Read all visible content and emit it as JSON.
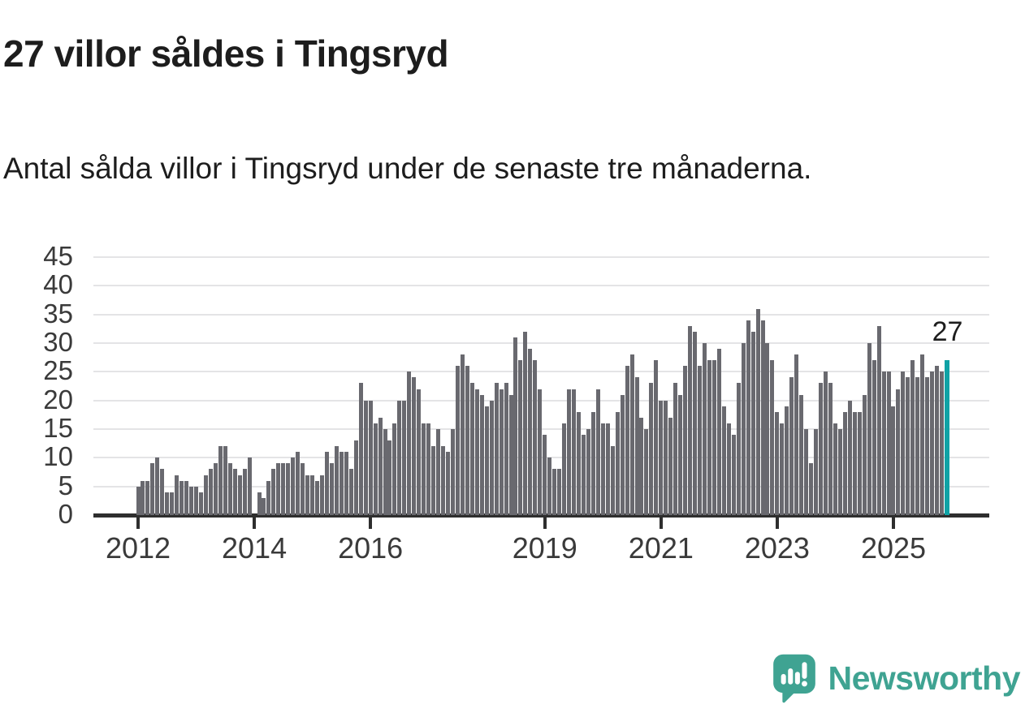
{
  "header": {
    "title": "27 villor såldes i Tingsryd",
    "subtitle": "Antal sålda villor i Tingsryd under de senaste tre månaderna."
  },
  "annotation": {
    "last_value_label": "27"
  },
  "footer": {
    "brand": "Newsworthy",
    "logo_icon": "newsworthy-speech-bubble-chart-icon"
  },
  "colors": {
    "bar": "#69696f",
    "highlight": "#0fa2a5",
    "brand": "#3fa392",
    "grid": "#e4e4e6",
    "axis": "#2e2e2e",
    "text": "#1d1d1d",
    "tick_label": "#3a3a3a"
  },
  "chart_data": {
    "type": "bar",
    "title": "27 villor såldes i Tingsryd",
    "subtitle": "Antal sålda villor i Tingsryd under de senaste tre månaderna.",
    "xlabel": "",
    "ylabel": "",
    "frequency": "monthly",
    "start": "2012-01",
    "end": "2025-12",
    "ylim": [
      0,
      45
    ],
    "y_ticks": [
      0,
      5,
      10,
      15,
      20,
      25,
      30,
      35,
      40,
      45
    ],
    "x_tick_years": [
      2012,
      2014,
      2016,
      2019,
      2021,
      2023,
      2025
    ],
    "x_tick_labels": [
      "2012",
      "2014",
      "2016",
      "2019",
      "2021",
      "2023",
      "2025"
    ],
    "grid": true,
    "legend": false,
    "highlight_last": true,
    "highlight_value": 27,
    "values": [
      5,
      6,
      6,
      9,
      10,
      8,
      4,
      4,
      7,
      6,
      6,
      5,
      5,
      4,
      7,
      8,
      9,
      12,
      12,
      9,
      8,
      7,
      8,
      10,
      0,
      4,
      3,
      6,
      8,
      9,
      9,
      9,
      10,
      11,
      9,
      7,
      7,
      6,
      7,
      11,
      9,
      12,
      11,
      11,
      8,
      13,
      23,
      20,
      20,
      16,
      17,
      15,
      13,
      16,
      20,
      20,
      25,
      24,
      22,
      16,
      16,
      12,
      15,
      12,
      11,
      15,
      26,
      28,
      26,
      23,
      22,
      21,
      19,
      20,
      23,
      22,
      23,
      21,
      31,
      27,
      32,
      29,
      27,
      22,
      14,
      10,
      8,
      8,
      16,
      22,
      22,
      18,
      14,
      15,
      18,
      22,
      16,
      16,
      12,
      18,
      21,
      26,
      28,
      24,
      17,
      15,
      23,
      27,
      20,
      20,
      17,
      23,
      21,
      26,
      33,
      32,
      26,
      30,
      27,
      27,
      29,
      19,
      16,
      14,
      23,
      30,
      34,
      32,
      36,
      34,
      30,
      27,
      18,
      16,
      19,
      24,
      28,
      21,
      15,
      9,
      15,
      23,
      25,
      23,
      16,
      15,
      18,
      20,
      18,
      18,
      21,
      30,
      27,
      33,
      25,
      25,
      19,
      22,
      25,
      24,
      27,
      24,
      28,
      24,
      25,
      26,
      25,
      27
    ]
  }
}
